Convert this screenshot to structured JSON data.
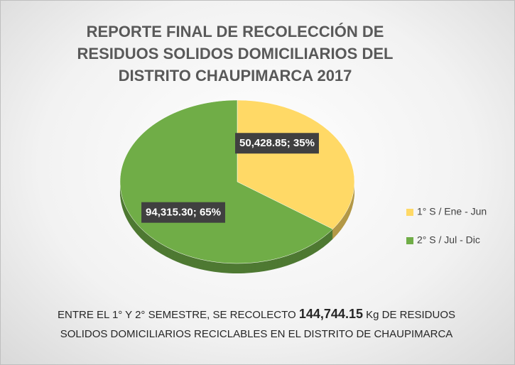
{
  "chart_data": {
    "type": "pie",
    "title": "REPORTE FINAL DE RECOLECCIÓN DE RESIDUOS SOLIDOS DOMICILIARIOS DEL DISTRITO CHAUPIMARCA 2017",
    "categories": [
      "1° S / Ene - Jun",
      "2° S / Jul - Dic"
    ],
    "values": [
      50428.85,
      94315.3
    ],
    "value_labels": [
      "50,428.85; 35%",
      "94,315.30; 65%"
    ],
    "colors": [
      "#ffd966",
      "#70ad47"
    ],
    "legend": "right",
    "note": {
      "before": "ENTRE EL 1° Y 2° SEMESTRE, SE RECOLECTO",
      "total": "144,744.15",
      "after": "Kg DE RESIDUOS SOLIDOS DOMICILIARIOS RECICLABLES EN EL DISTRITO DE CHAUPIMARCA"
    }
  }
}
